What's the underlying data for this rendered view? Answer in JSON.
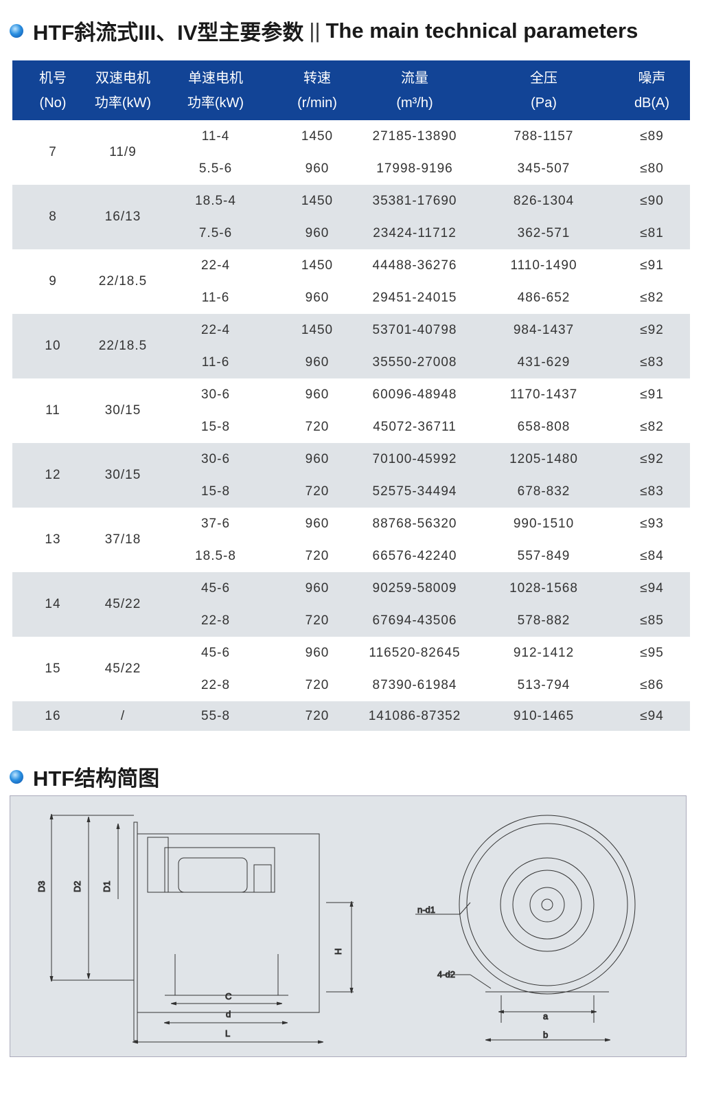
{
  "section1": {
    "title_cn": "HTF斜流式III、IV型主要参数",
    "divider": "||",
    "title_en": "The main technical parameters"
  },
  "table": {
    "headers": [
      {
        "cn": "机号",
        "unit": "(No)"
      },
      {
        "cn": "双速电机",
        "unit": "功率(kW)"
      },
      {
        "cn": "单速电机",
        "unit": "功率(kW)"
      },
      {
        "cn": "转速",
        "unit": "(r/min)"
      },
      {
        "cn": "流量",
        "unit": "(m³/h)"
      },
      {
        "cn": "全压",
        "unit": "(Pa)"
      },
      {
        "cn": "噪声",
        "unit": "dB(A)"
      }
    ],
    "groups": [
      {
        "no": "7",
        "dual": "11/9",
        "rows": [
          [
            "11-4",
            "1450",
            "27185-13890",
            "788-1157",
            "≤89"
          ],
          [
            "5.5-6",
            "960",
            "17998-9196",
            "345-507",
            "≤80"
          ]
        ]
      },
      {
        "no": "8",
        "dual": "16/13",
        "rows": [
          [
            "18.5-4",
            "1450",
            "35381-17690",
            "826-1304",
            "≤90"
          ],
          [
            "7.5-6",
            "960",
            "23424-11712",
            "362-571",
            "≤81"
          ]
        ]
      },
      {
        "no": "9",
        "dual": "22/18.5",
        "rows": [
          [
            "22-4",
            "1450",
            "44488-36276",
            "1110-1490",
            "≤91"
          ],
          [
            "11-6",
            "960",
            "29451-24015",
            "486-652",
            "≤82"
          ]
        ]
      },
      {
        "no": "10",
        "dual": "22/18.5",
        "rows": [
          [
            "22-4",
            "1450",
            "53701-40798",
            "984-1437",
            "≤92"
          ],
          [
            "11-6",
            "960",
            "35550-27008",
            "431-629",
            "≤83"
          ]
        ]
      },
      {
        "no": "11",
        "dual": "30/15",
        "rows": [
          [
            "30-6",
            "960",
            "60096-48948",
            "1170-1437",
            "≤91"
          ],
          [
            "15-8",
            "720",
            "45072-36711",
            "658-808",
            "≤82"
          ]
        ]
      },
      {
        "no": "12",
        "dual": "30/15",
        "rows": [
          [
            "30-6",
            "960",
            "70100-45992",
            "1205-1480",
            "≤92"
          ],
          [
            "15-8",
            "720",
            "52575-34494",
            "678-832",
            "≤83"
          ]
        ]
      },
      {
        "no": "13",
        "dual": "37/18",
        "rows": [
          [
            "37-6",
            "960",
            "88768-56320",
            "990-1510",
            "≤93"
          ],
          [
            "18.5-8",
            "720",
            "66576-42240",
            "557-849",
            "≤84"
          ]
        ]
      },
      {
        "no": "14",
        "dual": "45/22",
        "rows": [
          [
            "45-6",
            "960",
            "90259-58009",
            "1028-1568",
            "≤94"
          ],
          [
            "22-8",
            "720",
            "67694-43506",
            "578-882",
            "≤85"
          ]
        ]
      },
      {
        "no": "15",
        "dual": "45/22",
        "rows": [
          [
            "45-6",
            "960",
            "116520-82645",
            "912-1412",
            "≤95"
          ],
          [
            "22-8",
            "720",
            "87390-61984",
            "513-794",
            "≤86"
          ]
        ]
      },
      {
        "no": "16",
        "dual": "/",
        "rows": [
          [
            "55-8",
            "720",
            "141086-87352",
            "910-1465",
            "≤94"
          ]
        ]
      }
    ]
  },
  "section2": {
    "title": "HTF结构简图"
  },
  "diagram": {
    "labels": {
      "D3": "D3",
      "D2": "D2",
      "D1": "D1",
      "H": "H",
      "C": "C",
      "d": "d",
      "L": "L",
      "nd1": "n-d1",
      "4d2": "4-d2",
      "a": "a",
      "b": "b"
    }
  }
}
